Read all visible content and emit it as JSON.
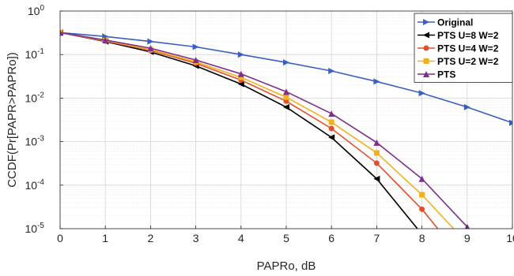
{
  "chart_data": {
    "type": "line",
    "xlabel": "PAPRo, dB",
    "ylabel": "CCDF(Pr[PAPR>PAPRo])",
    "xlim": [
      0,
      10
    ],
    "ylim": [
      1e-05,
      1
    ],
    "yscale": "log",
    "x_ticks": [
      "0",
      "1",
      "2",
      "3",
      "4",
      "5",
      "6",
      "7",
      "8",
      "9",
      "10"
    ],
    "y_ticks": [
      {
        "base": "10",
        "exp": "0"
      },
      {
        "base": "10",
        "exp": "-1"
      },
      {
        "base": "10",
        "exp": "-2"
      },
      {
        "base": "10",
        "exp": "-3"
      },
      {
        "base": "10",
        "exp": "-4"
      },
      {
        "base": "10",
        "exp": "-5"
      }
    ],
    "grid": true,
    "minor_grid": true,
    "legend_position": "top-right",
    "series": [
      {
        "name": "Original",
        "color": "#3b5fc0",
        "marker": "triangle-right",
        "x": [
          0,
          1,
          2,
          3,
          4,
          5,
          6,
          7,
          8,
          9,
          10
        ],
        "y": [
          0.32,
          0.26,
          0.2,
          0.15,
          0.1,
          0.066,
          0.042,
          0.024,
          0.013,
          0.0062,
          0.0027
        ]
      },
      {
        "name": "PTS U=8 W=2",
        "color": "#000000",
        "marker": "triangle-left",
        "x": [
          0,
          1,
          2,
          3,
          4,
          5,
          6,
          7,
          7.9
        ],
        "y": [
          0.32,
          0.2,
          0.115,
          0.055,
          0.021,
          0.0062,
          0.00125,
          0.00014,
          1e-05
        ]
      },
      {
        "name": "PTS U=4 W=2",
        "color": "#e0502a",
        "marker": "circle",
        "x": [
          0,
          1,
          2,
          3,
          4,
          5,
          6,
          7,
          8,
          8.35
        ],
        "y": [
          0.32,
          0.205,
          0.125,
          0.063,
          0.026,
          0.0085,
          0.002,
          0.00032,
          2.8e-05,
          1e-05
        ]
      },
      {
        "name": "PTS U=2 W=2",
        "color": "#f0b020",
        "marker": "square",
        "x": [
          0,
          1,
          2,
          3,
          4,
          5,
          6,
          7,
          8,
          8.7
        ],
        "y": [
          0.32,
          0.21,
          0.13,
          0.068,
          0.03,
          0.0105,
          0.0028,
          0.00055,
          6e-05,
          1e-05
        ]
      },
      {
        "name": "PTS",
        "color": "#7e2f8e",
        "marker": "triangle-up",
        "x": [
          0,
          1,
          2,
          3,
          4,
          5,
          6,
          7,
          8,
          9
        ],
        "y": [
          0.32,
          0.215,
          0.14,
          0.075,
          0.036,
          0.014,
          0.0044,
          0.00095,
          0.00014,
          1.1e-05
        ]
      }
    ]
  }
}
